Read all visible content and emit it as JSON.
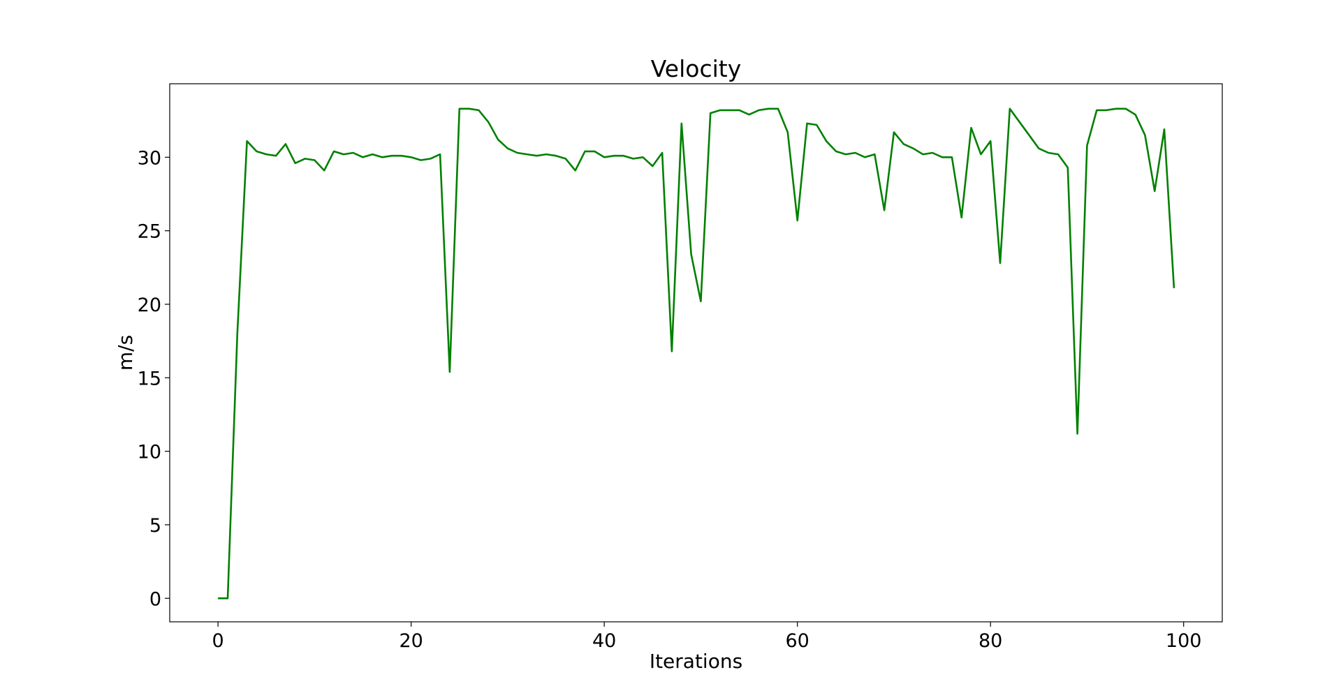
{
  "chart_data": {
    "type": "line",
    "title": "Velocity",
    "xlabel": "Iterations",
    "ylabel": "m/s",
    "xlim": [
      -5,
      104
    ],
    "ylim": [
      -1.6,
      35
    ],
    "x_ticks": [
      0,
      20,
      40,
      60,
      80,
      100
    ],
    "y_ticks": [
      0,
      5,
      10,
      15,
      20,
      25,
      30
    ],
    "grid": false,
    "legend": "none",
    "line_color": "#008000",
    "series": [
      {
        "x": [
          0,
          1,
          2,
          3,
          4,
          5,
          6,
          7,
          8,
          9,
          10,
          11,
          12,
          13,
          14,
          15,
          16,
          17,
          18,
          19,
          20,
          21,
          22,
          23,
          24,
          25,
          26,
          27,
          28,
          29,
          30,
          31,
          32,
          33,
          34,
          35,
          36,
          37,
          38,
          39,
          40,
          41,
          42,
          43,
          44,
          45,
          46,
          47,
          48,
          49,
          50,
          51,
          52,
          53,
          54,
          55,
          56,
          57,
          58,
          59,
          60,
          61,
          62,
          63,
          64,
          65,
          66,
          67,
          68,
          69,
          70,
          71,
          72,
          73,
          74,
          75,
          76,
          77,
          78,
          79,
          80,
          81,
          82,
          83,
          84,
          85,
          86,
          87,
          88,
          89,
          90,
          91,
          92,
          93,
          94,
          95,
          96,
          97,
          98,
          99
        ],
        "values": [
          0.0,
          0.0,
          18.0,
          31.1,
          30.4,
          30.2,
          30.1,
          30.9,
          29.6,
          29.9,
          29.8,
          29.1,
          30.4,
          30.2,
          30.3,
          30.0,
          30.2,
          30.0,
          30.1,
          30.1,
          30.0,
          29.8,
          29.9,
          30.2,
          15.4,
          33.3,
          33.3,
          33.2,
          32.4,
          31.2,
          30.6,
          30.3,
          30.2,
          30.1,
          30.2,
          30.1,
          29.9,
          29.1,
          30.4,
          30.4,
          30.0,
          30.1,
          30.1,
          29.9,
          30.0,
          29.4,
          30.3,
          16.8,
          32.3,
          23.4,
          20.2,
          33.0,
          33.2,
          33.2,
          33.2,
          32.9,
          33.2,
          33.3,
          33.3,
          31.7,
          25.7,
          32.3,
          32.2,
          31.1,
          30.4,
          30.2,
          30.3,
          30.0,
          30.2,
          26.4,
          31.7,
          30.9,
          30.6,
          30.2,
          30.3,
          30.0,
          30.0,
          25.9,
          32.0,
          30.2,
          31.1,
          22.8,
          33.3,
          32.4,
          31.5,
          30.6,
          30.3,
          30.2,
          29.3,
          11.2,
          30.8,
          33.2,
          33.2,
          33.3,
          33.3,
          32.9,
          31.5,
          27.7,
          31.9,
          21.1
        ]
      }
    ]
  }
}
